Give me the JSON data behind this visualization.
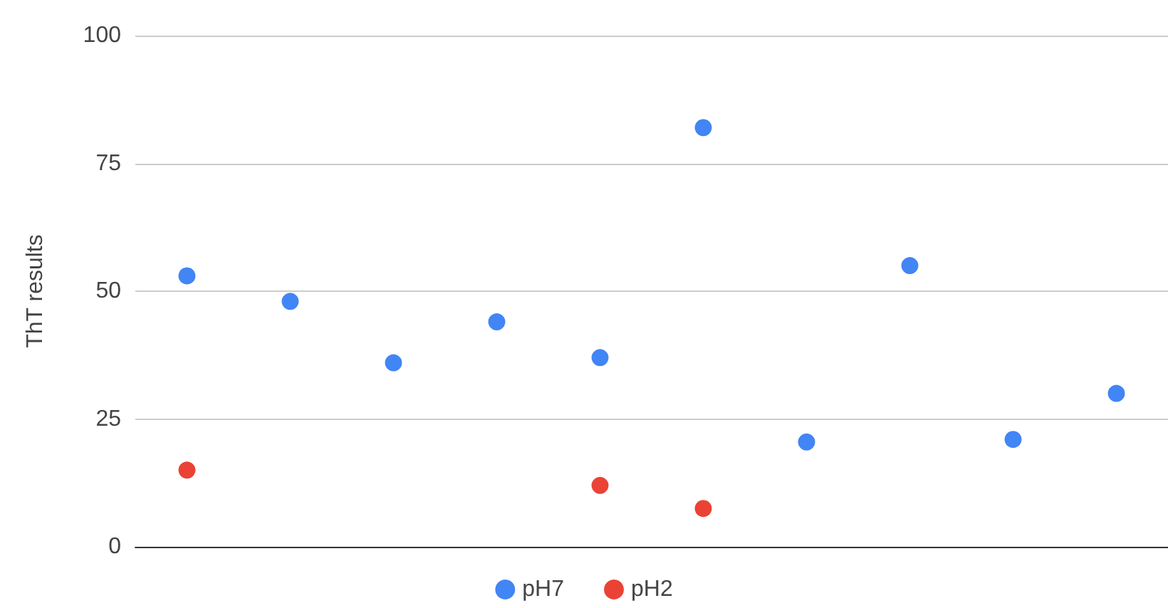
{
  "chart_data": {
    "type": "scatter",
    "ylabel": "ThT results",
    "categories": [
      null,
      null,
      null,
      null,
      null,
      null,
      null,
      null,
      null,
      null
    ],
    "series": [
      {
        "name": "pH7",
        "color": "#4285f4",
        "values": [
          53,
          48,
          36,
          44,
          37,
          82,
          20.5,
          55,
          21,
          30
        ]
      },
      {
        "name": "pH2",
        "color": "#ea4335",
        "values": [
          15,
          null,
          null,
          null,
          12,
          7.5,
          null,
          null,
          null,
          null
        ]
      }
    ],
    "ylim": [
      0,
      100
    ],
    "yticks": [
      0,
      25,
      50,
      75,
      100
    ],
    "grid": "y",
    "legend": "bottom",
    "marker": "circle",
    "tick_labels": "y"
  }
}
